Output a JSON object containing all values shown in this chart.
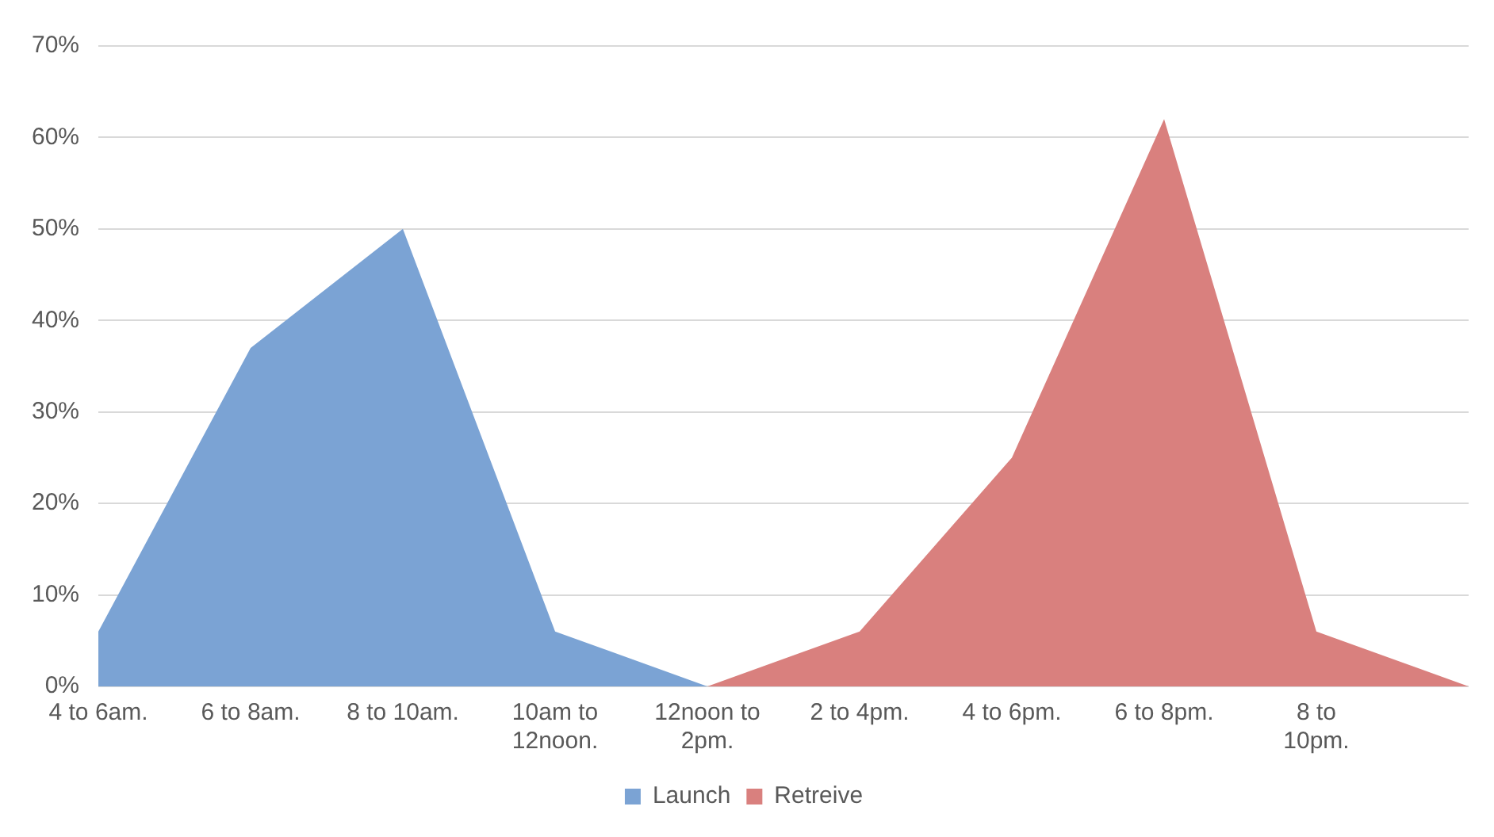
{
  "chart_data": {
    "type": "area",
    "categories": [
      "4 to 6am.",
      "6 to 8am.",
      "8 to 10am.",
      "10am to\n12noon.",
      "12noon to\n2pm.",
      "2 to 4pm.",
      "4 to 6pm.",
      "6 to 8pm.",
      "8 to\n10pm.",
      null
    ],
    "series": [
      {
        "name": "Launch",
        "color": "#7ba3d4",
        "values": [
          6,
          37,
          50,
          6,
          0,
          0,
          0,
          0,
          0,
          0
        ]
      },
      {
        "name": "Retreive",
        "color": "#d9807e",
        "values": [
          0,
          0,
          0,
          0,
          0,
          6,
          25,
          62,
          6,
          0
        ]
      }
    ],
    "ylim": [
      0,
      70
    ],
    "yticks": [
      {
        "value": 0,
        "label": "0%"
      },
      {
        "value": 10,
        "label": "10%"
      },
      {
        "value": 20,
        "label": "20%"
      },
      {
        "value": 30,
        "label": "30%"
      },
      {
        "value": 40,
        "label": "40%"
      },
      {
        "value": 50,
        "label": "50%"
      },
      {
        "value": 60,
        "label": "60%"
      },
      {
        "value": 70,
        "label": "70%"
      }
    ],
    "grid": "y",
    "legend": "bottom"
  }
}
